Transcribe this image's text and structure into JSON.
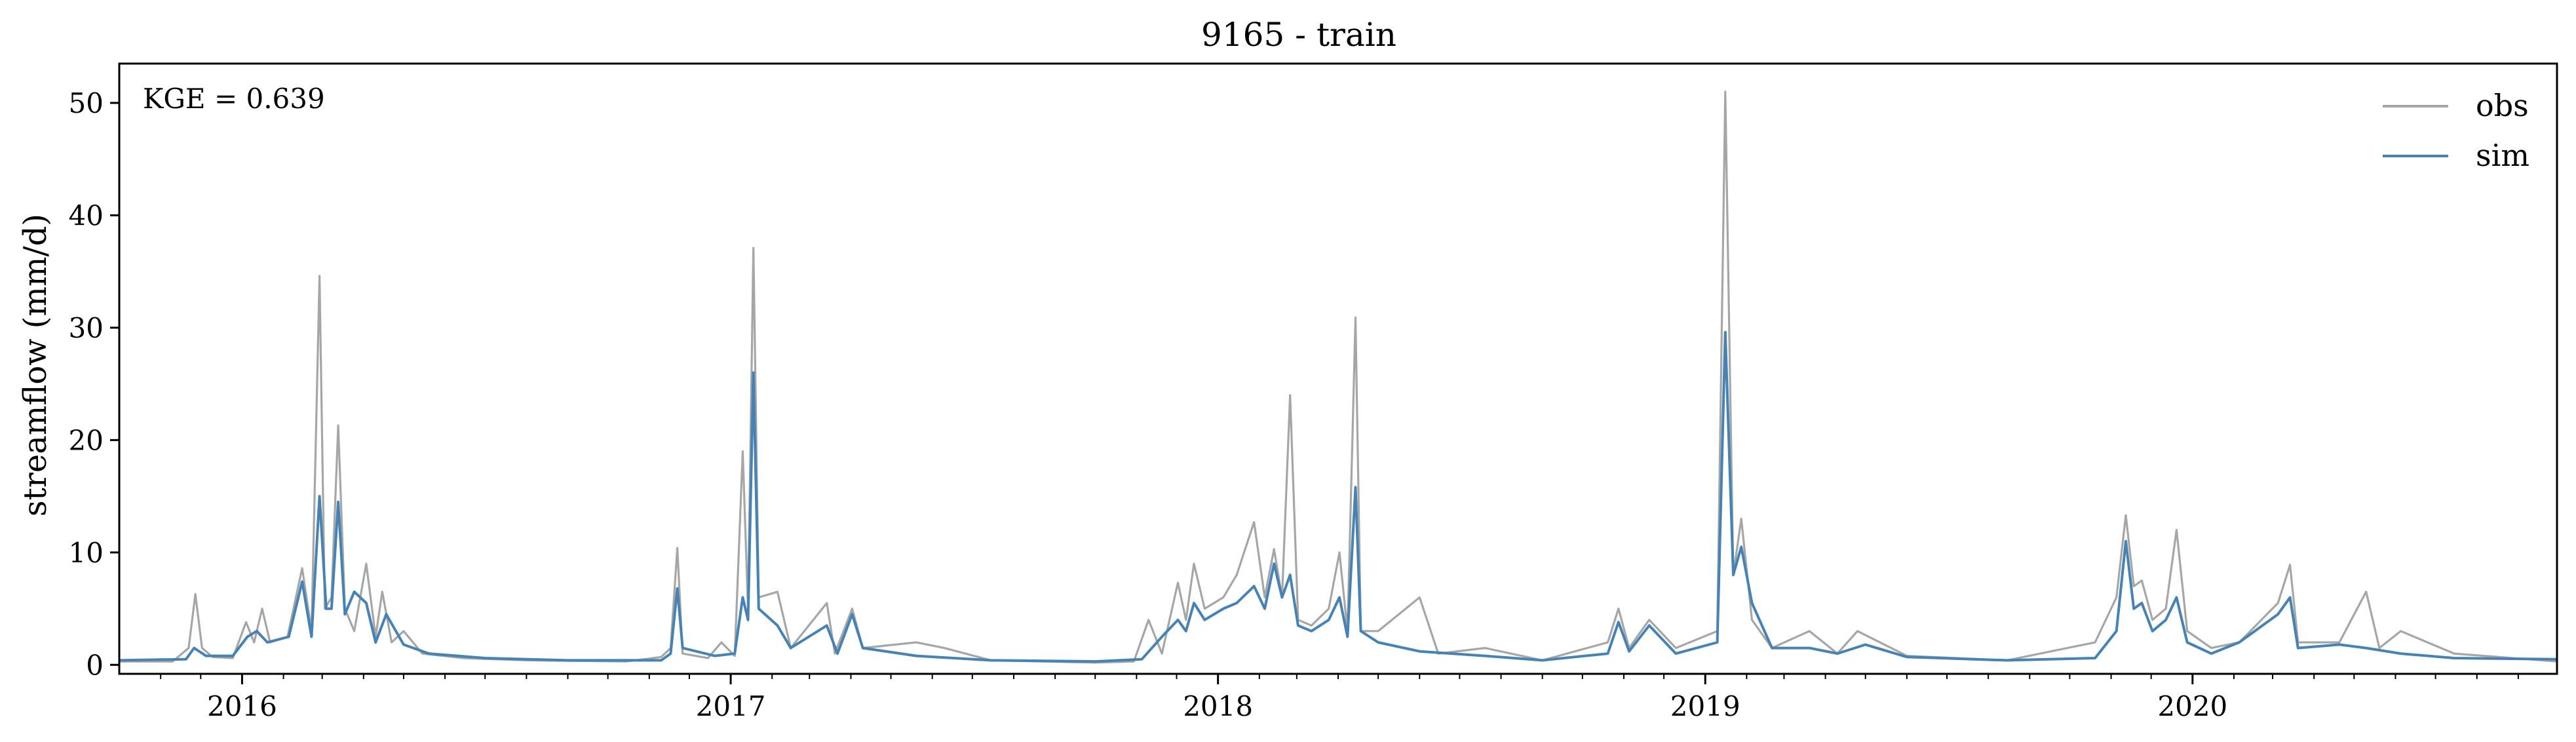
{
  "chart_data": {
    "type": "line",
    "title": "9165 - train",
    "xlabel": "",
    "ylabel": "streamflow (mm/d)",
    "annotation": "KGE = 0.639",
    "x_axis": {
      "range": [
        "2015-10-01",
        "2020-09-30"
      ],
      "tick_labels": [
        {
          "date": "2016-01-01",
          "label": "2016"
        },
        {
          "date": "2017-01-01",
          "label": "2017"
        },
        {
          "date": "2018-01-01",
          "label": "2018"
        },
        {
          "date": "2019-01-01",
          "label": "2019"
        },
        {
          "date": "2020-01-01",
          "label": "2020"
        }
      ],
      "minor_ticks": "monthly"
    },
    "y_axis": {
      "range": [
        -0.8,
        53.5
      ],
      "ticks": [
        0,
        10,
        20,
        30,
        40,
        50
      ]
    },
    "grid": false,
    "legend": {
      "position": "top-right"
    },
    "series": [
      {
        "name": "obs",
        "color": "#a6a6a6",
        "points": [
          [
            "2015-10-01",
            0.3
          ],
          [
            "2015-11-10",
            0.3
          ],
          [
            "2015-11-22",
            1.5
          ],
          [
            "2015-11-27",
            6.3
          ],
          [
            "2015-12-02",
            1.5
          ],
          [
            "2015-12-10",
            0.7
          ],
          [
            "2015-12-25",
            0.6
          ],
          [
            "2016-01-04",
            3.8
          ],
          [
            "2016-01-10",
            2.0
          ],
          [
            "2016-01-16",
            5.0
          ],
          [
            "2016-01-22",
            2.0
          ],
          [
            "2016-02-04",
            2.5
          ],
          [
            "2016-02-15",
            8.6
          ],
          [
            "2016-02-22",
            3.0
          ],
          [
            "2016-02-28",
            34.6
          ],
          [
            "2016-03-03",
            5.0
          ],
          [
            "2016-03-08",
            6.0
          ],
          [
            "2016-03-13",
            21.3
          ],
          [
            "2016-03-18",
            5.0
          ],
          [
            "2016-03-25",
            3.0
          ],
          [
            "2016-04-03",
            9.0
          ],
          [
            "2016-04-10",
            2.5
          ],
          [
            "2016-04-15",
            6.5
          ],
          [
            "2016-04-22",
            2.0
          ],
          [
            "2016-05-01",
            3.0
          ],
          [
            "2016-05-15",
            1.0
          ],
          [
            "2016-06-15",
            0.6
          ],
          [
            "2016-08-01",
            0.4
          ],
          [
            "2016-10-15",
            0.3
          ],
          [
            "2016-11-10",
            0.7
          ],
          [
            "2016-11-17",
            1.5
          ],
          [
            "2016-11-22",
            10.4
          ],
          [
            "2016-11-26",
            1.0
          ],
          [
            "2016-12-15",
            0.6
          ],
          [
            "2016-12-25",
            2.0
          ],
          [
            "2017-01-04",
            0.8
          ],
          [
            "2017-01-10",
            19.0
          ],
          [
            "2017-01-14",
            5.0
          ],
          [
            "2017-01-18",
            37.1
          ],
          [
            "2017-01-22",
            6.0
          ],
          [
            "2017-02-05",
            6.5
          ],
          [
            "2017-02-15",
            1.5
          ],
          [
            "2017-03-14",
            5.5
          ],
          [
            "2017-03-20",
            1.0
          ],
          [
            "2017-04-02",
            5.0
          ],
          [
            "2017-04-10",
            1.5
          ],
          [
            "2017-05-20",
            2.0
          ],
          [
            "2017-06-10",
            1.5
          ],
          [
            "2017-07-15",
            0.4
          ],
          [
            "2017-10-01",
            0.2
          ],
          [
            "2017-10-30",
            0.3
          ],
          [
            "2017-11-10",
            4.0
          ],
          [
            "2017-11-20",
            1.0
          ],
          [
            "2017-12-02",
            7.3
          ],
          [
            "2017-12-08",
            4.0
          ],
          [
            "2017-12-14",
            9.0
          ],
          [
            "2017-12-22",
            5.0
          ],
          [
            "2018-01-05",
            6.0
          ],
          [
            "2018-01-15",
            8.0
          ],
          [
            "2018-01-28",
            12.7
          ],
          [
            "2018-02-05",
            6.0
          ],
          [
            "2018-02-12",
            10.3
          ],
          [
            "2018-02-18",
            6.0
          ],
          [
            "2018-02-24",
            24.0
          ],
          [
            "2018-03-02",
            4.0
          ],
          [
            "2018-03-12",
            3.5
          ],
          [
            "2018-03-25",
            5.0
          ],
          [
            "2018-04-02",
            10.0
          ],
          [
            "2018-04-08",
            3.0
          ],
          [
            "2018-04-14",
            30.9
          ],
          [
            "2018-04-18",
            3.0
          ],
          [
            "2018-05-01",
            3.0
          ],
          [
            "2018-06-01",
            6.0
          ],
          [
            "2018-06-15",
            1.0
          ],
          [
            "2018-07-20",
            1.5
          ],
          [
            "2018-09-01",
            0.4
          ],
          [
            "2018-10-20",
            2.0
          ],
          [
            "2018-10-28",
            5.0
          ],
          [
            "2018-11-05",
            1.5
          ],
          [
            "2018-11-20",
            4.0
          ],
          [
            "2018-12-10",
            1.5
          ],
          [
            "2019-01-10",
            3.0
          ],
          [
            "2019-01-16",
            51.0
          ],
          [
            "2019-01-22",
            8.0
          ],
          [
            "2019-01-28",
            13.0
          ],
          [
            "2019-02-05",
            4.0
          ],
          [
            "2019-02-20",
            1.5
          ],
          [
            "2019-03-20",
            3.0
          ],
          [
            "2019-04-10",
            1.0
          ],
          [
            "2019-04-25",
            3.0
          ],
          [
            "2019-06-01",
            0.8
          ],
          [
            "2019-08-15",
            0.4
          ],
          [
            "2019-10-20",
            2.0
          ],
          [
            "2019-11-05",
            6.0
          ],
          [
            "2019-11-12",
            13.3
          ],
          [
            "2019-11-18",
            7.0
          ],
          [
            "2019-11-24",
            7.5
          ],
          [
            "2019-12-02",
            4.0
          ],
          [
            "2019-12-12",
            5.0
          ],
          [
            "2019-12-20",
            12.0
          ],
          [
            "2019-12-28",
            3.0
          ],
          [
            "2020-01-15",
            1.5
          ],
          [
            "2020-02-05",
            2.0
          ],
          [
            "2020-03-05",
            5.5
          ],
          [
            "2020-03-14",
            8.9
          ],
          [
            "2020-03-20",
            2.0
          ],
          [
            "2020-04-20",
            2.0
          ],
          [
            "2020-05-10",
            6.5
          ],
          [
            "2020-05-20",
            1.5
          ],
          [
            "2020-06-05",
            3.0
          ],
          [
            "2020-07-15",
            1.0
          ],
          [
            "2020-09-30",
            0.3
          ]
        ]
      },
      {
        "name": "sim",
        "color": "#4682b4",
        "points": [
          [
            "2015-10-01",
            0.4
          ],
          [
            "2015-11-20",
            0.5
          ],
          [
            "2015-11-26",
            1.5
          ],
          [
            "2015-12-05",
            0.8
          ],
          [
            "2015-12-25",
            0.8
          ],
          [
            "2016-01-05",
            2.5
          ],
          [
            "2016-01-12",
            3.0
          ],
          [
            "2016-01-20",
            2.0
          ],
          [
            "2016-02-05",
            2.5
          ],
          [
            "2016-02-15",
            7.4
          ],
          [
            "2016-02-22",
            2.5
          ],
          [
            "2016-02-28",
            15.0
          ],
          [
            "2016-03-04",
            5.0
          ],
          [
            "2016-03-08",
            5.0
          ],
          [
            "2016-03-13",
            14.5
          ],
          [
            "2016-03-18",
            4.5
          ],
          [
            "2016-03-25",
            6.5
          ],
          [
            "2016-04-03",
            5.5
          ],
          [
            "2016-04-10",
            2.0
          ],
          [
            "2016-04-18",
            4.5
          ],
          [
            "2016-05-01",
            1.8
          ],
          [
            "2016-05-20",
            1.0
          ],
          [
            "2016-07-01",
            0.6
          ],
          [
            "2016-09-01",
            0.4
          ],
          [
            "2016-11-10",
            0.4
          ],
          [
            "2016-11-17",
            1.0
          ],
          [
            "2016-11-22",
            6.8
          ],
          [
            "2016-11-26",
            1.5
          ],
          [
            "2016-12-20",
            0.8
          ],
          [
            "2017-01-04",
            1.0
          ],
          [
            "2017-01-10",
            6.0
          ],
          [
            "2017-01-14",
            4.0
          ],
          [
            "2017-01-18",
            26.0
          ],
          [
            "2017-01-22",
            5.0
          ],
          [
            "2017-02-05",
            3.5
          ],
          [
            "2017-02-15",
            1.5
          ],
          [
            "2017-03-14",
            3.5
          ],
          [
            "2017-03-22",
            1.0
          ],
          [
            "2017-04-02",
            4.5
          ],
          [
            "2017-04-10",
            1.5
          ],
          [
            "2017-05-20",
            0.8
          ],
          [
            "2017-07-15",
            0.4
          ],
          [
            "2017-10-01",
            0.3
          ],
          [
            "2017-11-05",
            0.5
          ],
          [
            "2017-11-20",
            2.5
          ],
          [
            "2017-12-02",
            4.0
          ],
          [
            "2017-12-08",
            3.0
          ],
          [
            "2017-12-14",
            5.5
          ],
          [
            "2017-12-22",
            4.0
          ],
          [
            "2018-01-05",
            5.0
          ],
          [
            "2018-01-15",
            5.5
          ],
          [
            "2018-01-28",
            7.0
          ],
          [
            "2018-02-05",
            5.0
          ],
          [
            "2018-02-12",
            9.0
          ],
          [
            "2018-02-18",
            6.0
          ],
          [
            "2018-02-24",
            8.0
          ],
          [
            "2018-03-02",
            3.5
          ],
          [
            "2018-03-12",
            3.0
          ],
          [
            "2018-03-25",
            4.0
          ],
          [
            "2018-04-02",
            6.0
          ],
          [
            "2018-04-08",
            2.5
          ],
          [
            "2018-04-14",
            15.8
          ],
          [
            "2018-04-18",
            3.0
          ],
          [
            "2018-05-01",
            2.0
          ],
          [
            "2018-06-01",
            1.2
          ],
          [
            "2018-07-20",
            0.8
          ],
          [
            "2018-09-01",
            0.4
          ],
          [
            "2018-10-20",
            1.0
          ],
          [
            "2018-10-28",
            3.8
          ],
          [
            "2018-11-05",
            1.2
          ],
          [
            "2018-11-20",
            3.5
          ],
          [
            "2018-12-10",
            1.0
          ],
          [
            "2019-01-10",
            2.0
          ],
          [
            "2019-01-16",
            29.6
          ],
          [
            "2019-01-22",
            8.0
          ],
          [
            "2019-01-28",
            10.5
          ],
          [
            "2019-02-05",
            5.5
          ],
          [
            "2019-02-20",
            1.5
          ],
          [
            "2019-03-20",
            1.5
          ],
          [
            "2019-04-10",
            1.0
          ],
          [
            "2019-05-01",
            1.8
          ],
          [
            "2019-06-01",
            0.7
          ],
          [
            "2019-08-15",
            0.4
          ],
          [
            "2019-10-20",
            0.6
          ],
          [
            "2019-11-05",
            3.0
          ],
          [
            "2019-11-12",
            11.0
          ],
          [
            "2019-11-18",
            5.0
          ],
          [
            "2019-11-24",
            5.5
          ],
          [
            "2019-12-02",
            3.0
          ],
          [
            "2019-12-12",
            4.0
          ],
          [
            "2019-12-20",
            6.0
          ],
          [
            "2019-12-28",
            2.0
          ],
          [
            "2020-01-15",
            1.0
          ],
          [
            "2020-02-05",
            2.0
          ],
          [
            "2020-03-05",
            4.5
          ],
          [
            "2020-03-14",
            6.0
          ],
          [
            "2020-03-20",
            1.5
          ],
          [
            "2020-04-20",
            1.8
          ],
          [
            "2020-05-10",
            1.5
          ],
          [
            "2020-06-05",
            1.0
          ],
          [
            "2020-07-15",
            0.6
          ],
          [
            "2020-09-30",
            0.5
          ]
        ]
      }
    ]
  }
}
